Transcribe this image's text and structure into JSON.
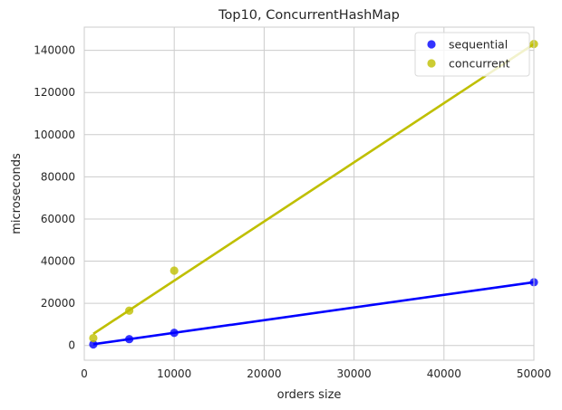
{
  "chart_data": {
    "type": "scatter",
    "title": "Top10, ConcurrentHashMap",
    "xlabel": "orders size",
    "ylabel": "microseconds",
    "xlim": [
      0,
      50000
    ],
    "ylim": [
      -7000,
      151000
    ],
    "xticks": [
      0,
      10000,
      20000,
      30000,
      40000,
      50000
    ],
    "yticks": [
      0,
      20000,
      40000,
      60000,
      80000,
      100000,
      120000,
      140000
    ],
    "grid": true,
    "legend_position": "top-right",
    "series": [
      {
        "name": "sequential",
        "color": "#0000ff",
        "x": [
          1000,
          5000,
          10000,
          50000
        ],
        "y": [
          500,
          3000,
          6000,
          30000
        ],
        "fit": {
          "x": [
            1000,
            50000
          ],
          "y": [
            600,
            30000
          ]
        }
      },
      {
        "name": "concurrent",
        "color": "#bfbf00",
        "x": [
          1000,
          5000,
          10000,
          50000
        ],
        "y": [
          3500,
          16500,
          35500,
          143000
        ],
        "fit": {
          "x": [
            1000,
            50000
          ],
          "y": [
            5500,
            143000
          ]
        }
      }
    ]
  }
}
